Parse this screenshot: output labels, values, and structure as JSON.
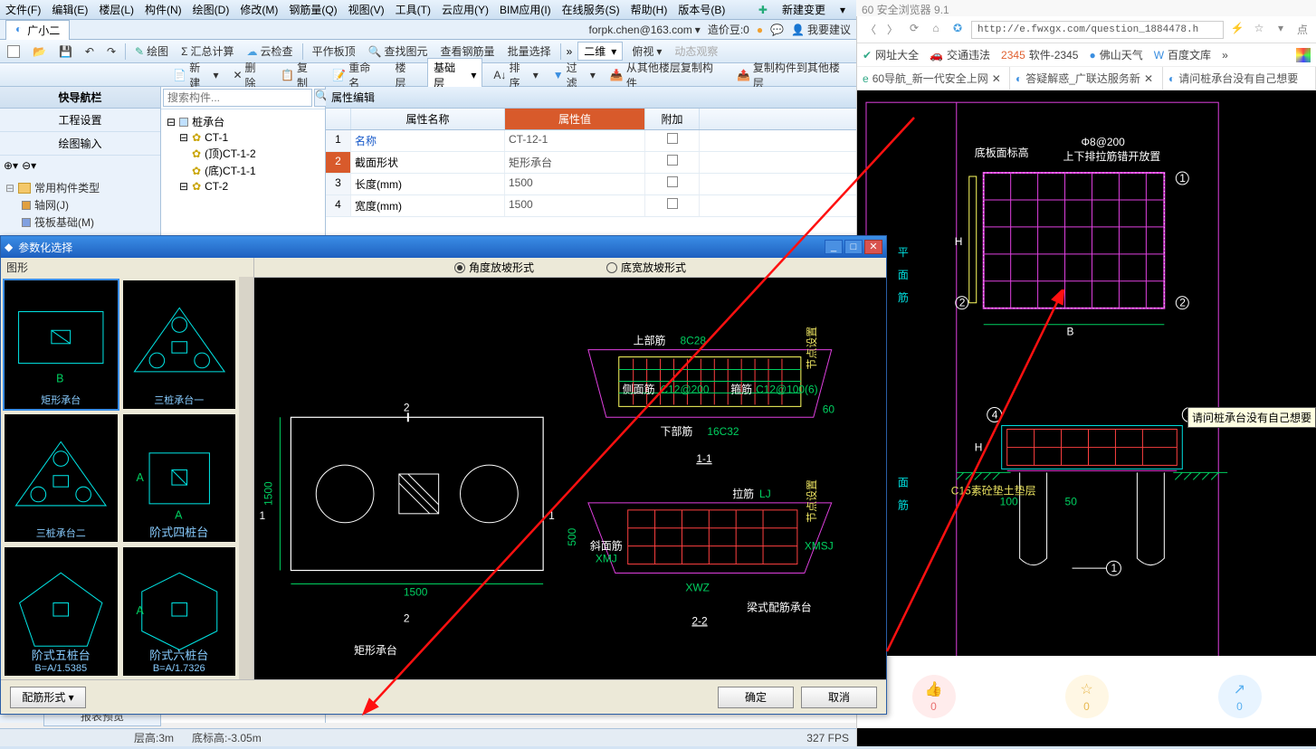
{
  "browser_hint": "60 安全浏览器 9.1",
  "menubar": {
    "items": [
      "文件(F)",
      "编辑(E)",
      "楼层(L)",
      "构件(N)",
      "绘图(D)",
      "修改(M)",
      "钢筋量(Q)",
      "视图(V)",
      "工具(T)",
      "云应用(Y)",
      "BIM应用(I)",
      "在线服务(S)",
      "帮助(H)",
      "版本号(B)"
    ],
    "newchange": "新建变更"
  },
  "doc": {
    "name": "广小二",
    "email": "forpk.chen@163.com",
    "price": "造价豆:0",
    "sugg": "我要建议"
  },
  "tb1": {
    "items": [
      "绘图",
      "汇总计算",
      "云检查"
    ],
    "right": [
      "平作板顶",
      "查找图元",
      "查看钢筋量",
      "批量选择",
      "二维",
      "俯视",
      "动态观察"
    ]
  },
  "nav": {
    "title": "快导航栏",
    "sec1": "工程设置",
    "sec2": "绘图输入",
    "tree_root": "常用构件类型",
    "tree_items": [
      "轴网(J)",
      "筏板基础(M)"
    ]
  },
  "tb2": {
    "items": [
      "新建",
      "删除",
      "复制",
      "重命名",
      "楼层",
      "基础层",
      "排序",
      "过滤",
      "从其他楼层复制构件",
      "复制构件到其他楼层"
    ]
  },
  "search_ph": "搜索构件...",
  "elem_tree": {
    "root": "桩承台",
    "n1": "CT-1",
    "n1a": "(顶)CT-1-2",
    "n1b": "(底)CT-1-1",
    "n2": "CT-2"
  },
  "prop": {
    "title": "属性编辑",
    "h_name": "属性名称",
    "h_val": "属性值",
    "h_add": "附加",
    "rows": [
      {
        "i": "1",
        "name": "名称",
        "val": "CT-12-1",
        "blue": true
      },
      {
        "i": "2",
        "name": "截面形状",
        "val": "矩形承台",
        "sel": true
      },
      {
        "i": "3",
        "name": "长度(mm)",
        "val": "1500"
      },
      {
        "i": "4",
        "name": "宽度(mm)",
        "val": "1500"
      }
    ]
  },
  "dialog": {
    "title": "参数化选择",
    "left_title": "图形",
    "radio1": "角度放坡形式",
    "radio2": "底宽放坡形式",
    "btn_rebar": "配筋形式",
    "btn_ok": "确定",
    "btn_cancel": "取消",
    "thumbs": [
      "矩形承台",
      "三桩承台一",
      "三桩承台二",
      "阶式四桩台",
      "阶式五桩台",
      "阶式六桩台"
    ],
    "labels": {
      "plan_title": "矩形承台",
      "plan_dim_w": "1500",
      "plan_dim_h": "1500",
      "sec11": "1-1",
      "sec22": "2-2",
      "sec_title": "梁式配筋承台",
      "top_bar": "上部筋",
      "top_bar_v": "8C28",
      "side_bar": "侧面筋",
      "side_bar_v": "C12@200",
      "stir": "箍筋",
      "stir_v": "C12@100(6)",
      "bot_bar": "下部筋",
      "bot_bar_v": "16C32",
      "tie": "拉筋",
      "tie_v": "LJ",
      "xmj": "斜面筋",
      "xmj_v": "XMJ",
      "xmsj": "XMSJ",
      "xwz": "XWZ",
      "dim60": "60",
      "dim500": "500",
      "jd": "节点设置"
    }
  },
  "browser": {
    "url": "http://e.fwxgx.com/question_1884478.h",
    "bookmarks": [
      "网址大全",
      "交通违法",
      "软件-2345",
      "佛山天气",
      "百度文库"
    ],
    "tabs": [
      "60导航_新一代安全上网",
      "答疑解惑_广联达服务新",
      "请问桩承台没有自己想要"
    ],
    "tooltip": "请问桩承台没有自己想要",
    "zan": "0",
    "star": "0",
    "share": "0",
    "cad": {
      "t1": "底板面标高",
      "t2": "Φ8@200",
      "t3": "上下排拉筋错开放置",
      "t4": "C15素砼垫土垫层",
      "B": "B",
      "H": "H",
      "d100": "100",
      "d50": "50"
    }
  },
  "status": {
    "report": "报表预览",
    "h": "层高:3m",
    "b": "底标高:-3.05m",
    "fps": "327 FPS"
  },
  "colors": {
    "cyan": "#00e0e0",
    "green": "#00d060",
    "magenta": "#e040e0",
    "yellow": "#e8e060",
    "red": "#ff2020",
    "white": "#ffffff"
  }
}
